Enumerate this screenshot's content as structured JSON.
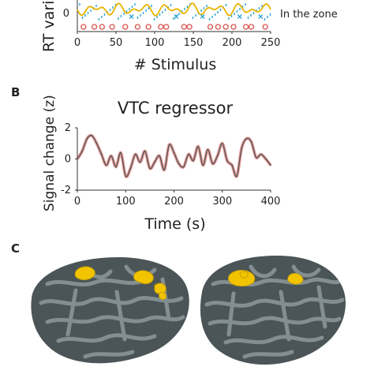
{
  "panels": {
    "a": {
      "xlabel": "# Stimulus",
      "ylabel": "RT varia",
      "y_tick_visible": "0",
      "x_ticks": [
        "0",
        "50",
        "100",
        "150",
        "200",
        "250"
      ],
      "legend_text": "In the zone"
    },
    "b": {
      "letter": "B",
      "title": "VTC regressor",
      "xlabel": "Time (s)",
      "ylabel": "Signal change (z)",
      "x_ticks": [
        "0",
        "100",
        "200",
        "300",
        "400"
      ],
      "y_ticks": [
        "2",
        "0",
        "-2"
      ]
    },
    "c": {
      "letter": "C"
    }
  },
  "colors": {
    "vtc_line": "#555555",
    "vtc_error": "#d9534f",
    "rt_gold": "#e8b400",
    "rt_cyan": "#2aa6d6",
    "rt_red": "#d9534f",
    "brain_dark": "#3f4a4c",
    "brain_light": "#8e999b",
    "activation": "#f2c400"
  },
  "chart_data": [
    {
      "type": "scatter",
      "xlabel": "# Stimulus",
      "ylabel": "RT varia",
      "xlim": [
        0,
        250
      ],
      "x_ticks": [
        0,
        50,
        100,
        150,
        200,
        250
      ],
      "y_ticks_visible": [
        0
      ],
      "legend": [
        "In the zone"
      ],
      "series": [
        {
          "name": "In the zone",
          "x": [
            8,
            22,
            32,
            45,
            62,
            78,
            92,
            108,
            115,
            138,
            145,
            172,
            182,
            192,
            202,
            218,
            225,
            243
          ]
        },
        {
          "x": [
            70,
            128,
            162,
            210,
            237
          ]
        }
      ]
    },
    {
      "type": "line",
      "title": "VTC regressor",
      "xlabel": "Time (s)",
      "ylabel": "Signal change (z)",
      "xlim": [
        0,
        400
      ],
      "ylim": [
        -2,
        2
      ],
      "x_ticks": [
        0,
        100,
        200,
        300,
        400
      ],
      "y_ticks": [
        -2,
        0,
        2
      ],
      "x": [
        0,
        10,
        20,
        30,
        40,
        50,
        60,
        70,
        80,
        90,
        100,
        110,
        120,
        130,
        140,
        150,
        160,
        170,
        180,
        190,
        200,
        210,
        220,
        230,
        240,
        250,
        260,
        270,
        280,
        290,
        300,
        310,
        320,
        330,
        340,
        350,
        360,
        370,
        380,
        390,
        400
      ],
      "y": [
        0.0,
        0.5,
        1.3,
        1.5,
        1.0,
        0.3,
        -0.4,
        0.2,
        -0.5,
        0.4,
        -1.1,
        -0.6,
        0.3,
        -0.2,
        0.5,
        -0.6,
        -0.2,
        0.2,
        -0.7,
        0.9,
        0.4,
        -0.3,
        -0.5,
        0.3,
        -0.1,
        0.8,
        -0.4,
        0.6,
        -0.3,
        0.2,
        1.0,
        -0.1,
        -0.4,
        -1.1,
        0.7,
        1.3,
        1.1,
        0.1,
        0.3,
        0.0,
        -0.4
      ]
    }
  ]
}
